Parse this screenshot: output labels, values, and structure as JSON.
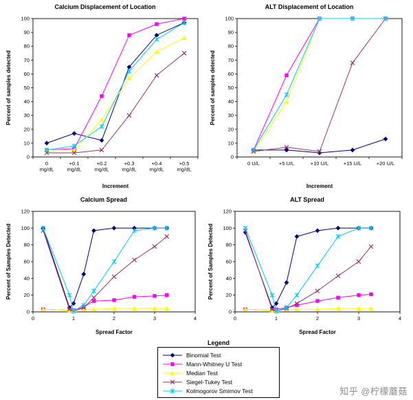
{
  "page": {
    "background": "#ffffff"
  },
  "watermark": "知乎 @柠檬蘑菇",
  "legend": {
    "title": "Legend",
    "position": "bottom-center-shared",
    "entries": [
      {
        "label": "Binomial Test",
        "color": "#000080",
        "marker": "diamond"
      },
      {
        "label": "Mann-Whitney U Test",
        "color": "#ff00ff",
        "marker": "square"
      },
      {
        "label": "Median Test",
        "color": "#ffff00",
        "marker": "triangle"
      },
      {
        "label": "Siegel-Tukey Test",
        "color": "#993366",
        "marker": "x"
      },
      {
        "label": "Kolmogorov Smirnov Test",
        "color": "#00ccff",
        "marker": "asterisk"
      }
    ]
  },
  "chart_data": [
    {
      "id": "calcium-displacement-of-location",
      "type": "line",
      "title": "Calcium Displacement of Location",
      "xlabel": "Increment",
      "ylabel": "Percent of samples detected",
      "ylim": [
        0,
        100
      ],
      "ytick_step": 10,
      "grid": false,
      "categories": [
        [
          "0",
          "mg/dL"
        ],
        [
          "+0.1",
          "mg/dL"
        ],
        [
          "+0.2",
          "mg/dL"
        ],
        [
          "+0.3",
          "mg/dL"
        ],
        [
          "+0.4",
          "mg/dL"
        ],
        [
          "+0.5",
          "mg/dL"
        ]
      ],
      "series": [
        {
          "name": "Binomial Test",
          "values": [
            10,
            17,
            12,
            65,
            88,
            97
          ]
        },
        {
          "name": "Mann-Whitney U Test",
          "values": [
            5,
            6,
            44,
            88,
            96,
            100
          ]
        },
        {
          "name": "Median Test",
          "values": [
            5,
            5,
            27,
            57,
            76,
            86
          ]
        },
        {
          "name": "Siegel-Tukey Test",
          "values": [
            3,
            3,
            5,
            30,
            59,
            75
          ]
        },
        {
          "name": "Kolmogorov Smirnov Test",
          "values": [
            5,
            8,
            22,
            62,
            85,
            97
          ]
        }
      ]
    },
    {
      "id": "alt-displacement-of-location",
      "type": "line",
      "title": "ALT Displacement of Location",
      "xlabel": "Increment",
      "ylabel": "Percent of samples detected",
      "ylim": [
        0,
        100
      ],
      "ytick_step": 10,
      "grid": false,
      "categories": [
        [
          "0 U/L"
        ],
        [
          "+5 U/L"
        ],
        [
          "+10 U/L"
        ],
        [
          "+15 U/L"
        ],
        [
          "+20 U/L"
        ]
      ],
      "series": [
        {
          "name": "Binomial Test",
          "values": [
            5,
            5,
            3,
            5,
            13
          ]
        },
        {
          "name": "Mann-Whitney U Test",
          "values": [
            5,
            59,
            100,
            100,
            100
          ]
        },
        {
          "name": "Median Test",
          "values": [
            4,
            40,
            100,
            100,
            100
          ]
        },
        {
          "name": "Siegel-Tukey Test",
          "values": [
            4,
            7,
            4,
            68,
            100
          ]
        },
        {
          "name": "Kolmogorov Smirnov Test",
          "values": [
            5,
            45,
            100,
            100,
            100
          ]
        }
      ]
    },
    {
      "id": "calcium-spread",
      "type": "line",
      "title": "Calcium Spread",
      "xlabel": "Spread Factor",
      "ylabel": "Percent of Samples Detected",
      "ylim": [
        0,
        120
      ],
      "ytick_step": 20,
      "xlim": [
        0,
        4
      ],
      "xticks": [
        0,
        1,
        2,
        3,
        4
      ],
      "grid": false,
      "x": [
        0.25,
        0.9,
        1,
        1.25,
        1.5,
        2,
        2.5,
        3,
        3.3
      ],
      "series": [
        {
          "name": "Binomial Test",
          "values": [
            100,
            5,
            10,
            45,
            97,
            100,
            100,
            100,
            100
          ]
        },
        {
          "name": "Mann-Whitney U Test",
          "values": [
            3,
            2,
            2,
            6,
            13,
            14,
            18,
            19,
            20
          ]
        },
        {
          "name": "Median Test",
          "values": [
            3,
            2,
            2,
            3,
            3,
            4,
            4,
            4,
            4
          ]
        },
        {
          "name": "Siegel-Tukey Test",
          "values": [
            97,
            3,
            1,
            5,
            17,
            42,
            62,
            78,
            90
          ]
        },
        {
          "name": "Kolmogorov Smirnov Test",
          "values": [
            100,
            20,
            1,
            8,
            25,
            60,
            97,
            100,
            100
          ]
        }
      ]
    },
    {
      "id": "alt-spread",
      "type": "line",
      "title": "ALT Spread",
      "xlabel": "Spread Factor",
      "ylabel": "Percent of Samples Detected",
      "ylim": [
        0,
        120
      ],
      "ytick_step": 20,
      "xlim": [
        0,
        4
      ],
      "xticks": [
        0,
        1,
        2,
        3,
        4
      ],
      "grid": false,
      "x": [
        0.25,
        0.9,
        1,
        1.25,
        1.5,
        2,
        2.5,
        3,
        3.3
      ],
      "series": [
        {
          "name": "Binomial Test",
          "values": [
            95,
            5,
            10,
            35,
            90,
            97,
            100,
            100,
            100
          ]
        },
        {
          "name": "Mann-Whitney U Test",
          "values": [
            3,
            2,
            3,
            5,
            8,
            13,
            17,
            20,
            21
          ]
        },
        {
          "name": "Median Test",
          "values": [
            3,
            2,
            2,
            3,
            3,
            3,
            4,
            4,
            4
          ]
        },
        {
          "name": "Siegel-Tukey Test",
          "values": [
            97,
            3,
            1,
            4,
            10,
            25,
            43,
            60,
            78
          ]
        },
        {
          "name": "Kolmogorov Smirnov Test",
          "values": [
            100,
            20,
            1,
            5,
            20,
            55,
            90,
            100,
            100
          ]
        }
      ]
    }
  ]
}
